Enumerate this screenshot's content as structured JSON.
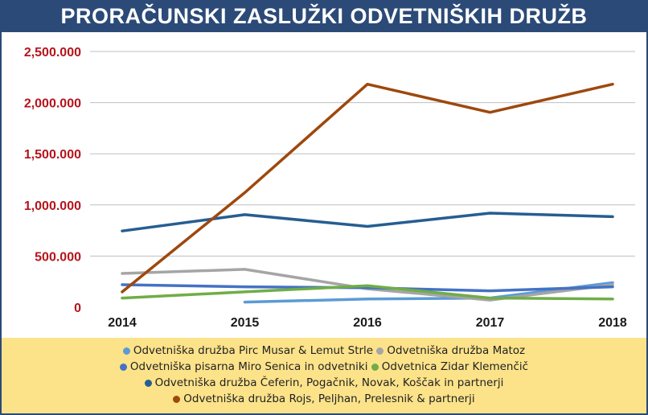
{
  "title": "PRORAČUNSKI ZASLUŽKI ODVETNIŠKIH DRUŽB",
  "colors": {
    "header_bg": "#2b4a77",
    "legend_bg": "#fce38a",
    "y_tick_color": "#b5141c",
    "grid_color": "#bfbfbf"
  },
  "chart_data": {
    "type": "line",
    "title": "PRORAČUNSKI ZASLUŽKI ODVETNIŠKIH DRUŽB",
    "xlabel": "",
    "ylabel": "",
    "categories": [
      "2014",
      "2015",
      "2016",
      "2017",
      "2018"
    ],
    "ylim": [
      0,
      2500000
    ],
    "y_ticks": [
      0,
      500000,
      1000000,
      1500000,
      2000000,
      2500000
    ],
    "y_tick_labels": [
      "0",
      "500.000",
      "1,000.000",
      "1,500.000",
      "2,000.000",
      "2,500.000"
    ],
    "grid": true,
    "legend_position": "bottom",
    "series": [
      {
        "name": "Odvetniška družba Pirc Musar & Lemut Strle",
        "color": "#5b9bd5",
        "values": [
          null,
          50000,
          80000,
          90000,
          240000
        ]
      },
      {
        "name": "Odvetniška družba Matoz",
        "color": "#a5a5a5",
        "values": [
          330000,
          370000,
          180000,
          70000,
          220000
        ]
      },
      {
        "name": "Odvetniška pisarna Miro Senica in odvetniki",
        "color": "#4472c4",
        "values": [
          220000,
          200000,
          190000,
          160000,
          200000
        ]
      },
      {
        "name": "Odvetnica Zidar Klemenčič",
        "color": "#70ad47",
        "values": [
          90000,
          150000,
          210000,
          90000,
          80000
        ]
      },
      {
        "name": "Odvetniška družba Čeferin, Pogačnik, Novak, Koščak in partnerji",
        "color": "#255e91",
        "values": [
          745000,
          905000,
          790000,
          920000,
          885000
        ]
      },
      {
        "name": "Odvetniška družba Rojs, Peljhan, Prelesnik & partnerji",
        "color": "#9e480e",
        "values": [
          150000,
          1120000,
          2180000,
          1905000,
          2180000
        ]
      }
    ]
  }
}
